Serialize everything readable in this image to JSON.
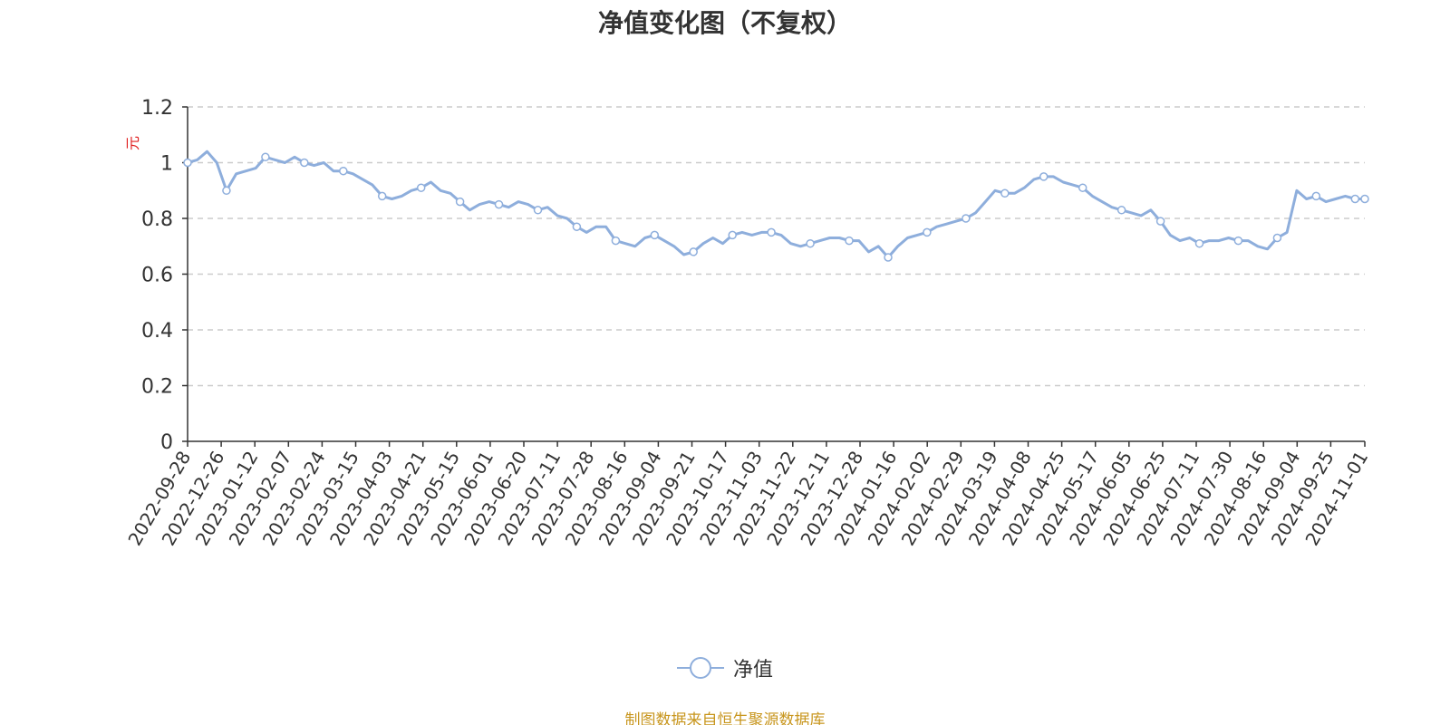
{
  "title": "净值变化图（不复权）",
  "source_note": "制图数据来自恒生聚源数据库",
  "colors": {
    "series": "#8eaedc",
    "axis": "#333333",
    "grid": "#cccccc",
    "yunit": "#e02020",
    "source": "#c8961e",
    "title": "#333333"
  },
  "legend": {
    "label": "净值",
    "icon": "circle-marker-line-icon"
  },
  "chart_data": {
    "type": "line",
    "title": "净值变化图（不复权）",
    "xlabel": "",
    "ylabel": "元",
    "ylim": [
      0,
      1.2
    ],
    "y_ticks": [
      "0",
      "0.2",
      "0.4",
      "0.6",
      "0.8",
      "1",
      "1.2"
    ],
    "x_ticks": [
      "2022-09-28",
      "2022-12-26",
      "2023-01-12",
      "2023-02-07",
      "2023-02-24",
      "2023-03-15",
      "2023-04-03",
      "2023-04-21",
      "2023-05-15",
      "2023-06-01",
      "2023-06-20",
      "2023-07-11",
      "2023-07-28",
      "2023-08-16",
      "2023-09-04",
      "2023-09-21",
      "2023-10-17",
      "2023-11-03",
      "2023-11-22",
      "2023-12-11",
      "2023-12-28",
      "2024-01-16",
      "2024-02-02",
      "2024-02-29",
      "2024-03-19",
      "2024-04-08",
      "2024-04-25",
      "2024-05-17",
      "2024-06-05",
      "2024-06-25",
      "2024-07-11",
      "2024-07-30",
      "2024-08-16",
      "2024-09-04",
      "2024-09-25",
      "2024-11-01"
    ],
    "grid": true,
    "grid_style": "dashed",
    "legend_position": "bottom-center",
    "series": [
      {
        "name": "净值",
        "marker": "hollow-circle",
        "values": [
          1.0,
          1.01,
          1.04,
          1.0,
          0.9,
          0.96,
          0.97,
          0.98,
          1.02,
          1.01,
          1.0,
          1.02,
          1.0,
          0.99,
          1.0,
          0.97,
          0.97,
          0.96,
          0.94,
          0.92,
          0.88,
          0.87,
          0.88,
          0.9,
          0.91,
          0.93,
          0.9,
          0.89,
          0.86,
          0.83,
          0.85,
          0.86,
          0.85,
          0.84,
          0.86,
          0.85,
          0.83,
          0.84,
          0.81,
          0.8,
          0.77,
          0.75,
          0.77,
          0.77,
          0.72,
          0.71,
          0.7,
          0.73,
          0.74,
          0.72,
          0.7,
          0.67,
          0.68,
          0.71,
          0.73,
          0.71,
          0.74,
          0.75,
          0.74,
          0.75,
          0.75,
          0.74,
          0.71,
          0.7,
          0.71,
          0.72,
          0.73,
          0.73,
          0.72,
          0.72,
          0.68,
          0.7,
          0.66,
          0.7,
          0.73,
          0.74,
          0.75,
          0.77,
          0.78,
          0.79,
          0.8,
          0.82,
          0.86,
          0.9,
          0.89,
          0.89,
          0.91,
          0.94,
          0.95,
          0.95,
          0.93,
          0.92,
          0.91,
          0.88,
          0.86,
          0.84,
          0.83,
          0.82,
          0.81,
          0.83,
          0.79,
          0.74,
          0.72,
          0.73,
          0.71,
          0.72,
          0.72,
          0.73,
          0.72,
          0.72,
          0.7,
          0.69,
          0.73,
          0.75,
          0.9,
          0.87,
          0.88,
          0.86,
          0.87,
          0.88,
          0.87,
          0.87
        ]
      }
    ]
  }
}
